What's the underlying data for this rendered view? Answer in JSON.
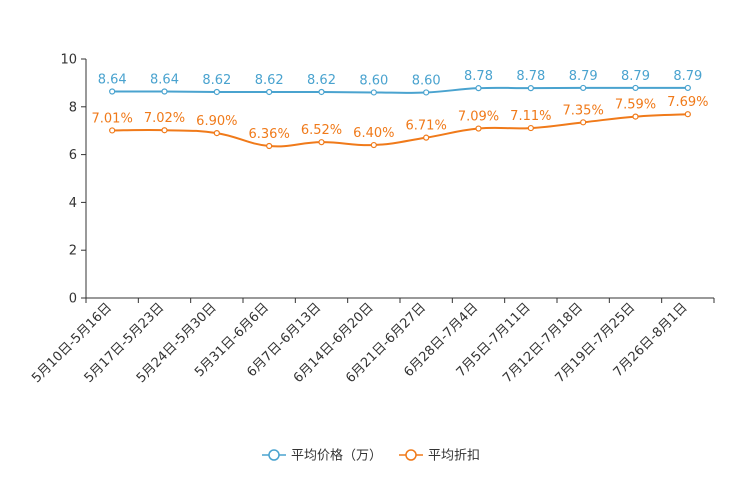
{
  "chart_data": {
    "type": "line",
    "categories": [
      "5月10日-5月16日",
      "5月17日-5月23日",
      "5月24日-5月30日",
      "5月31日-6月6日",
      "6月7日-6月13日",
      "6月14日-6月20日",
      "6月21日-6月27日",
      "6月28日-7月4日",
      "7月5日-7月11日",
      "7月12日-7月18日",
      "7月19日-7月25日",
      "7月26日-8月1日"
    ],
    "ylim": [
      0,
      10
    ],
    "yticks": [
      0,
      2,
      4,
      6,
      8,
      10
    ],
    "legend_position": "bottom",
    "series": [
      {
        "name": "平均价格（万）",
        "color": "#4aa3cf",
        "values": [
          8.64,
          8.64,
          8.62,
          8.62,
          8.62,
          8.6,
          8.6,
          8.78,
          8.78,
          8.79,
          8.79,
          8.79
        ],
        "labels": [
          "8.64",
          "8.64",
          "8.62",
          "8.62",
          "8.62",
          "8.60",
          "8.60",
          "8.78",
          "8.78",
          "8.79",
          "8.79",
          "8.79"
        ]
      },
      {
        "name": "平均折扣",
        "color": "#f07a1a",
        "values": [
          7.01,
          7.02,
          6.9,
          6.36,
          6.52,
          6.4,
          6.71,
          7.09,
          7.11,
          7.35,
          7.59,
          7.69
        ],
        "labels": [
          "7.01%",
          "7.02%",
          "6.90%",
          "6.36%",
          "6.52%",
          "6.40%",
          "6.71%",
          "7.09%",
          "7.11%",
          "7.35%",
          "7.59%",
          "7.69%"
        ]
      }
    ]
  }
}
